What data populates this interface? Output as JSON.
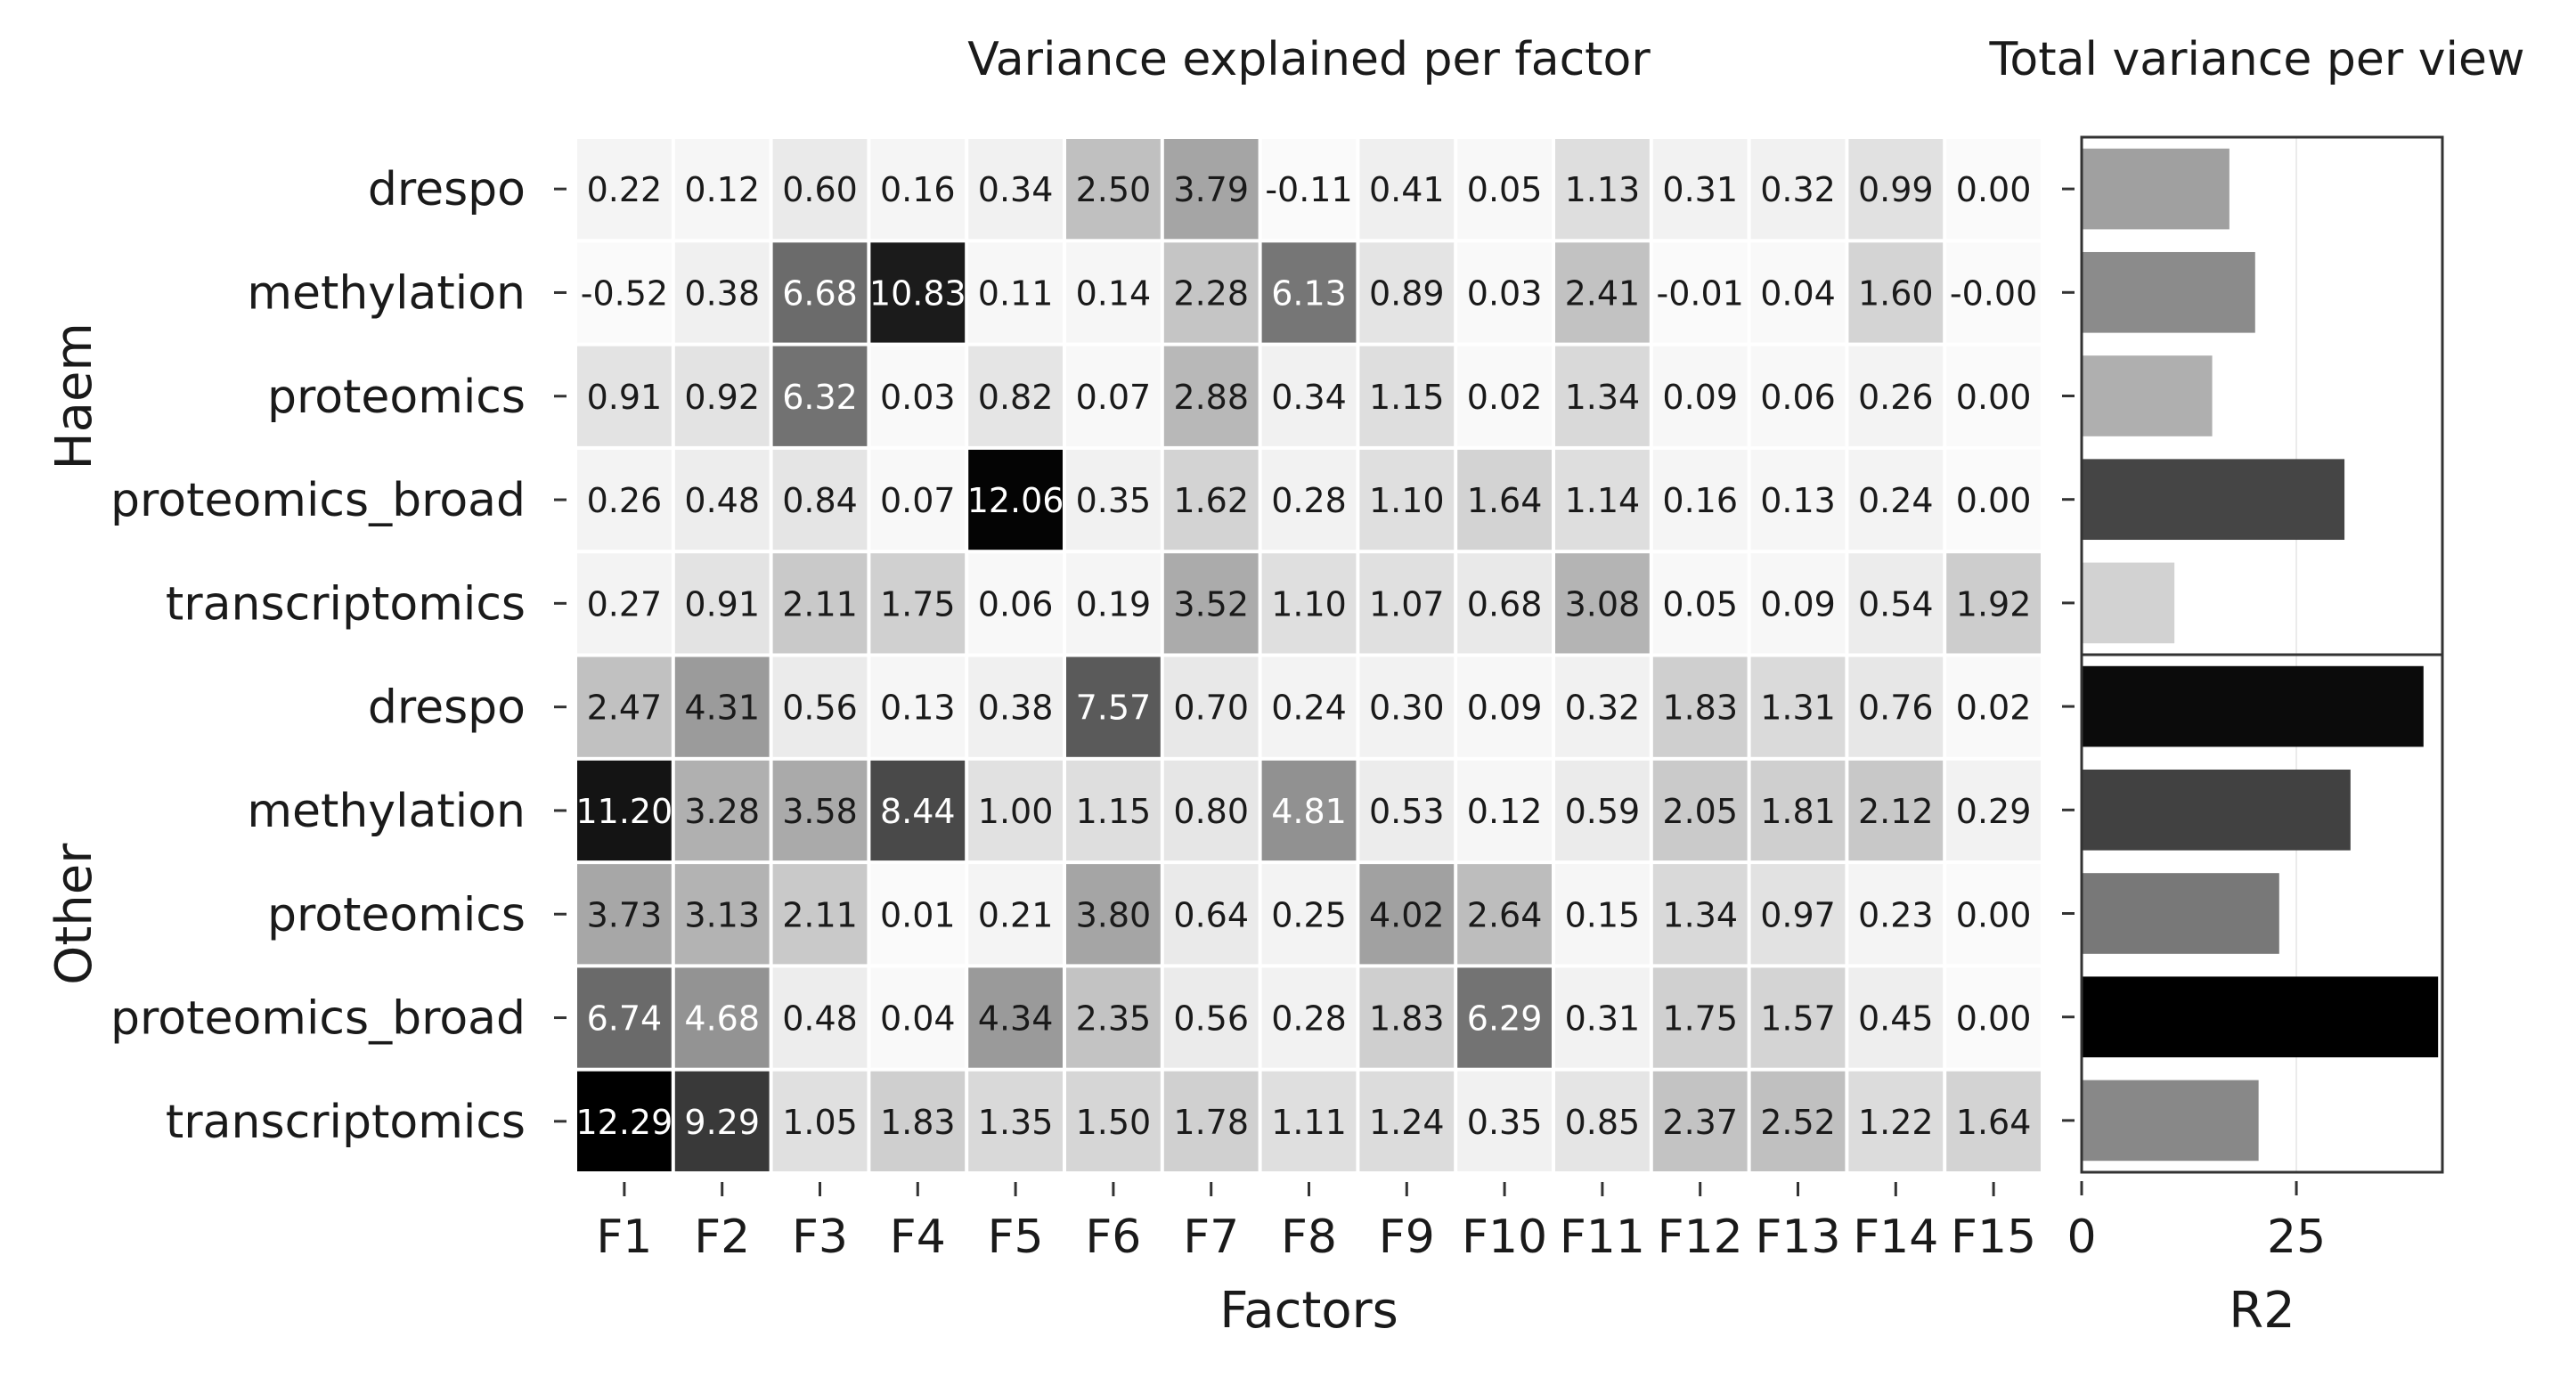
{
  "chart_data": [
    {
      "type": "heatmap",
      "title": "Variance explained per factor",
      "xlabel": "Factors",
      "ylabel": "",
      "colormap": "greyscale, higher values darker",
      "grid": false,
      "factors": [
        "F1",
        "F2",
        "F3",
        "F4",
        "F5",
        "F6",
        "F7",
        "F8",
        "F9",
        "F10",
        "F11",
        "F12",
        "F13",
        "F14",
        "F15"
      ],
      "groups": [
        {
          "name": "Haem",
          "views": [
            "drespo",
            "methylation",
            "proteomics",
            "proteomics_broad",
            "transcriptomics"
          ],
          "values": [
            [
              "0.22",
              "0.12",
              "0.60",
              "0.16",
              "0.34",
              "2.50",
              "3.79",
              "-0.11",
              "0.41",
              "0.05",
              "1.13",
              "0.31",
              "0.32",
              "0.99",
              "0.00"
            ],
            [
              "-0.52",
              "0.38",
              "6.68",
              "10.83",
              "0.11",
              "0.14",
              "2.28",
              "6.13",
              "0.89",
              "0.03",
              "2.41",
              "-0.01",
              "0.04",
              "1.60",
              "-0.00"
            ],
            [
              "0.91",
              "0.92",
              "6.32",
              "0.03",
              "0.82",
              "0.07",
              "2.88",
              "0.34",
              "1.15",
              "0.02",
              "1.34",
              "0.09",
              "0.06",
              "0.26",
              "0.00"
            ],
            [
              "0.26",
              "0.48",
              "0.84",
              "0.07",
              "12.06",
              "0.35",
              "1.62",
              "0.28",
              "1.10",
              "1.64",
              "1.14",
              "0.16",
              "0.13",
              "0.24",
              "0.00"
            ],
            [
              "0.27",
              "0.91",
              "2.11",
              "1.75",
              "0.06",
              "0.19",
              "3.52",
              "1.10",
              "1.07",
              "0.68",
              "3.08",
              "0.05",
              "0.09",
              "0.54",
              "1.92"
            ]
          ]
        },
        {
          "name": "Other",
          "views": [
            "drespo",
            "methylation",
            "proteomics",
            "proteomics_broad",
            "transcriptomics"
          ],
          "values": [
            [
              "2.47",
              "4.31",
              "0.56",
              "0.13",
              "0.38",
              "7.57",
              "0.70",
              "0.24",
              "0.30",
              "0.09",
              "0.32",
              "1.83",
              "1.31",
              "0.76",
              "0.02"
            ],
            [
              "11.20",
              "3.28",
              "3.58",
              "8.44",
              "1.00",
              "1.15",
              "0.80",
              "4.81",
              "0.53",
              "0.12",
              "0.59",
              "2.05",
              "1.81",
              "2.12",
              "0.29"
            ],
            [
              "3.73",
              "3.13",
              "2.11",
              "0.01",
              "0.21",
              "3.80",
              "0.64",
              "0.25",
              "4.02",
              "2.64",
              "0.15",
              "1.34",
              "0.97",
              "0.23",
              "0.00"
            ],
            [
              "6.74",
              "4.68",
              "0.48",
              "0.04",
              "4.34",
              "2.35",
              "0.56",
              "0.28",
              "1.83",
              "6.29",
              "0.31",
              "1.75",
              "1.57",
              "0.45",
              "0.00"
            ],
            [
              "12.29",
              "9.29",
              "1.05",
              "1.83",
              "1.35",
              "1.50",
              "1.78",
              "1.11",
              "1.24",
              "0.35",
              "0.85",
              "2.37",
              "2.52",
              "1.22",
              "1.64"
            ]
          ]
        }
      ]
    },
    {
      "type": "bar",
      "orientation": "horizontal",
      "title": "Total variance per view",
      "xlabel": "R2",
      "ylabel": "",
      "xlim": [
        0,
        42
      ],
      "xticks": [
        "0",
        "25"
      ],
      "grid": true,
      "groups": [
        {
          "name": "Haem",
          "views": [
            "drespo",
            "methylation",
            "proteomics",
            "proteomics_broad",
            "transcriptomics"
          ],
          "values": [
            17.2,
            20.2,
            15.2,
            30.6,
            10.8
          ]
        },
        {
          "name": "Other",
          "views": [
            "drespo",
            "methylation",
            "proteomics",
            "proteomics_broad",
            "transcriptomics"
          ],
          "values": [
            39.8,
            31.3,
            23.0,
            41.5,
            20.6
          ]
        }
      ]
    }
  ]
}
